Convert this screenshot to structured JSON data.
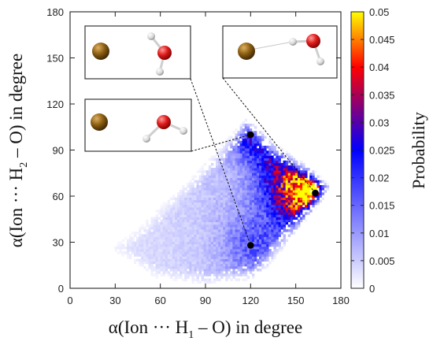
{
  "chart_data": {
    "type": "heatmap",
    "title": "",
    "xlabel_parts": [
      "α(Ion ··· H",
      "1",
      " – O) in degree"
    ],
    "ylabel_parts": [
      "α(Ion ··· H",
      "2",
      " – O) in degree"
    ],
    "xlim": [
      0,
      180
    ],
    "ylim": [
      0,
      180
    ],
    "xticks": [
      "0",
      "30",
      "60",
      "90",
      "120",
      "150",
      "180"
    ],
    "yticks": [
      "0",
      "30",
      "60",
      "90",
      "120",
      "150",
      "180"
    ],
    "colorbar": {
      "label": "Probability",
      "range": [
        0,
        0.05
      ],
      "ticks": [
        "0",
        "0.005",
        "0.01",
        "0.015",
        "0.02",
        "0.025",
        "0.03",
        "0.035",
        "0.04",
        "0.045",
        "0.05"
      ],
      "colors": [
        "#ffffff",
        "#0000ff",
        "#ff0000",
        "#ffff00"
      ]
    },
    "density_peaks": [
      {
        "x": 163,
        "y": 62,
        "value": 0.045
      },
      {
        "x": 120,
        "y": 100,
        "value": 0.02
      },
      {
        "x": 120,
        "y": 28,
        "value": 0.012
      }
    ],
    "marked_points": [
      {
        "x": 120,
        "y": 100
      },
      {
        "x": 163,
        "y": 62
      },
      {
        "x": 120,
        "y": 28
      }
    ],
    "insets": [
      {
        "name": "configuration-top-left",
        "links_to": {
          "x": 120,
          "y": 28
        }
      },
      {
        "name": "configuration-top-right",
        "links_to": {
          "x": 163,
          "y": 62
        }
      },
      {
        "name": "configuration-middle-left",
        "links_to": {
          "x": 120,
          "y": 100
        }
      }
    ],
    "grid": false,
    "legend": "none"
  },
  "colors": {
    "ion": "#7a5410",
    "oxygen": "#d81818",
    "hydrogen": "#dcdcdc"
  }
}
